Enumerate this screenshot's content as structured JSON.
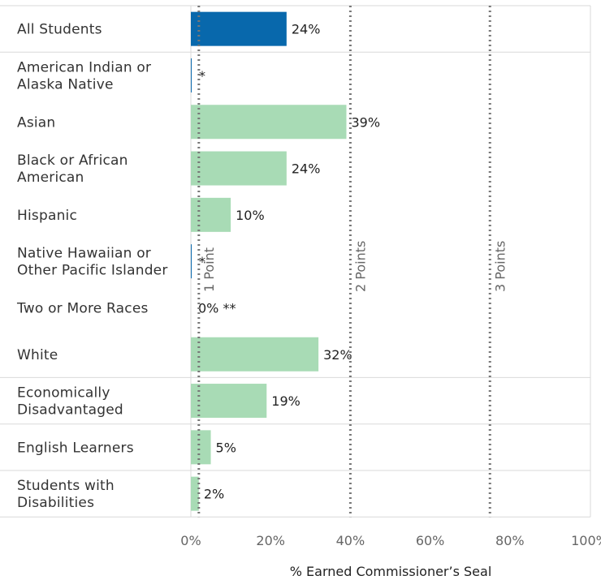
{
  "chart_data": {
    "type": "bar",
    "orientation": "horizontal",
    "categories": [
      [
        "All Students"
      ],
      [
        "American Indian or",
        "Alaska Native"
      ],
      [
        "Asian"
      ],
      [
        "Black or African",
        "American"
      ],
      [
        "Hispanic"
      ],
      [
        "Native Hawaiian or",
        "Other Pacific Islander"
      ],
      [
        "Two or More Races"
      ],
      [
        "White"
      ],
      [
        "Economically",
        "Disadvantaged"
      ],
      [
        "English Learners"
      ],
      [
        "Students with",
        "Disabilities"
      ]
    ],
    "values": [
      24,
      0.2,
      39,
      24,
      10,
      0.2,
      0,
      32,
      19,
      5,
      2
    ],
    "value_labels": [
      "24%",
      "*",
      "39%",
      "24%",
      "10%",
      "*",
      "0% **",
      "32%",
      "19%",
      "5%",
      "2%"
    ],
    "bar_colors": [
      "#0868ac",
      "#0868ac",
      "#a8dbb5",
      "#a8dbb5",
      "#a8dbb5",
      "#0868ac",
      "#a8dbb5",
      "#a8dbb5",
      "#a8dbb5",
      "#a8dbb5",
      "#a8dbb5"
    ],
    "row_separators_after": [
      0,
      7,
      8,
      9
    ],
    "x_ticks": [
      0,
      20,
      40,
      60,
      80,
      100
    ],
    "x_tick_labels": [
      "0%",
      "20%",
      "40%",
      "60%",
      "80%",
      "100%"
    ],
    "xlim": [
      0,
      100
    ],
    "xlabel": "% Earned Commissioner’s Seal",
    "reference_lines": [
      {
        "value": 2,
        "label": "1 Point"
      },
      {
        "value": 40,
        "label": "2 Points"
      },
      {
        "value": 75,
        "label": "3 Points"
      }
    ],
    "colors": {
      "highlight": "#0868ac",
      "default": "#a8dbb5",
      "grid": "#d9d9d9",
      "reference": "#777777"
    }
  }
}
